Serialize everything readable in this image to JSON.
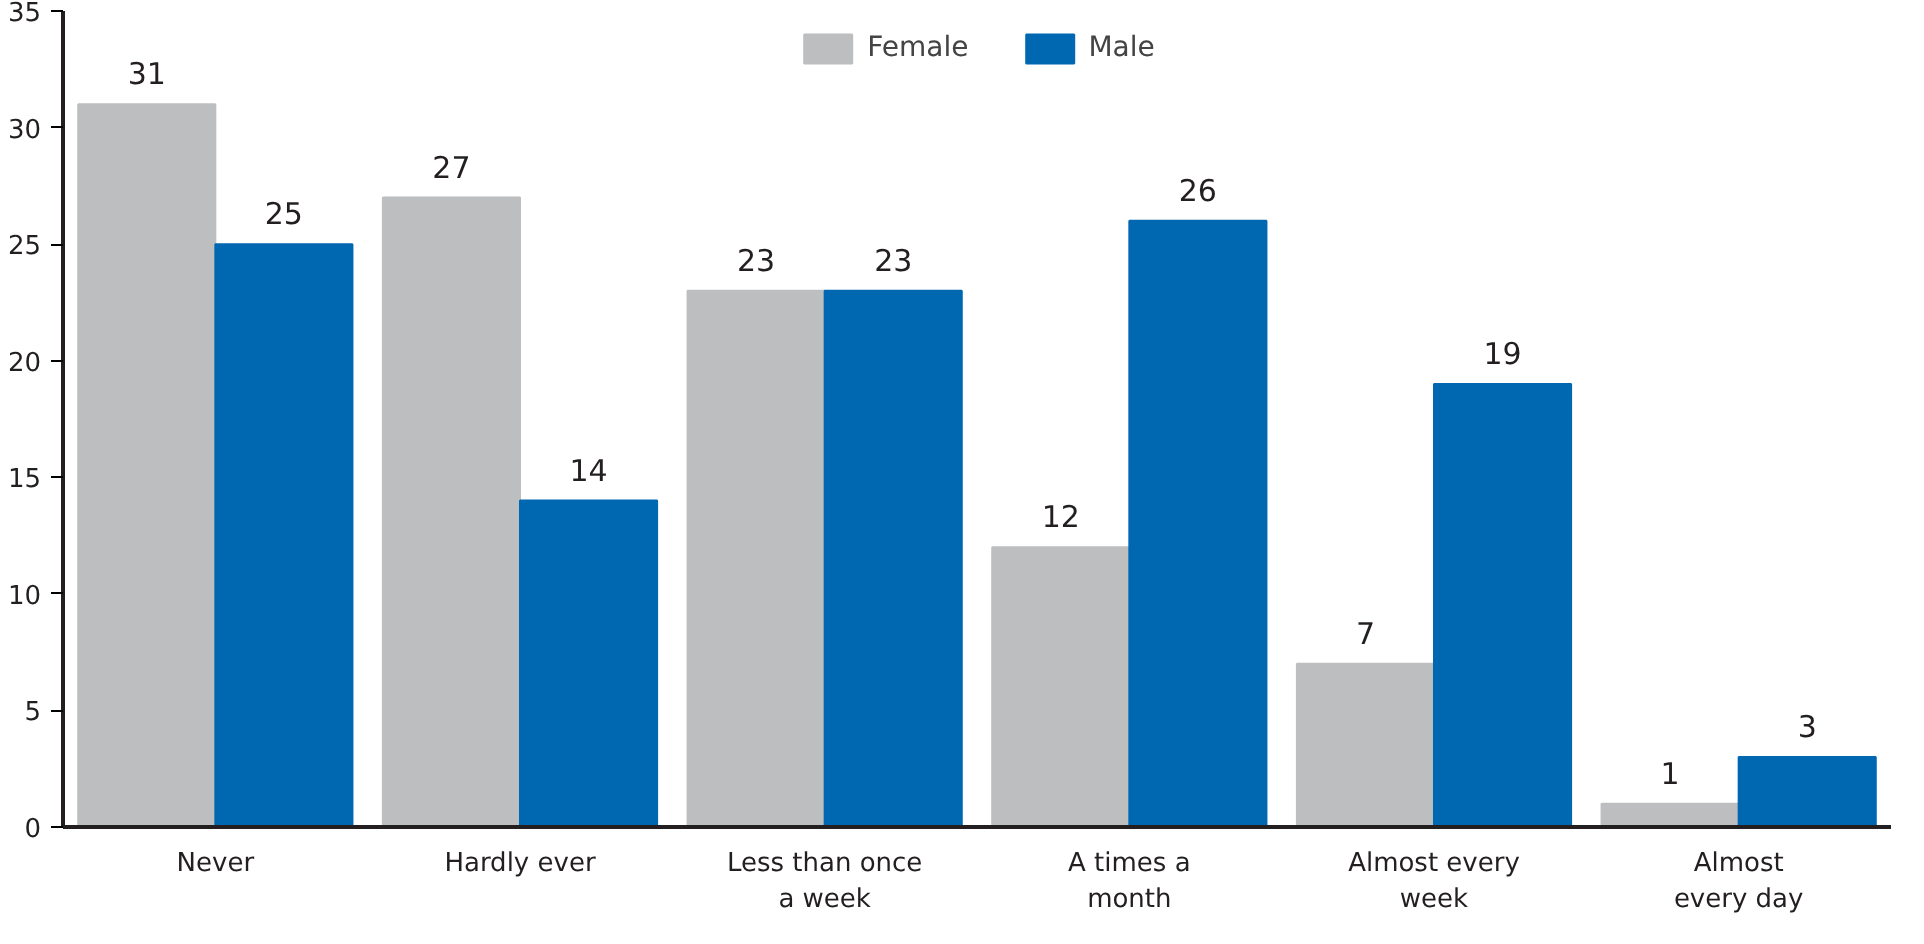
{
  "chart_data": {
    "type": "bar",
    "categories": [
      "Never",
      "Hardly ever",
      "Less than once\na week",
      "A times a\nmonth",
      "Almost every\nweek",
      "Almost\nevery day"
    ],
    "series": [
      {
        "name": "Female",
        "color": "#bcbec0",
        "values": [
          31,
          27,
          23,
          12,
          7,
          1
        ]
      },
      {
        "name": "Male",
        "color": "#0067b1",
        "values": [
          25,
          14,
          23,
          26,
          19,
          3
        ]
      }
    ],
    "ylim": [
      0,
      35
    ],
    "yticks": [
      0,
      5,
      10,
      15,
      20,
      25,
      30,
      35
    ],
    "grid": false,
    "legend": "top",
    "data_labels": true
  }
}
